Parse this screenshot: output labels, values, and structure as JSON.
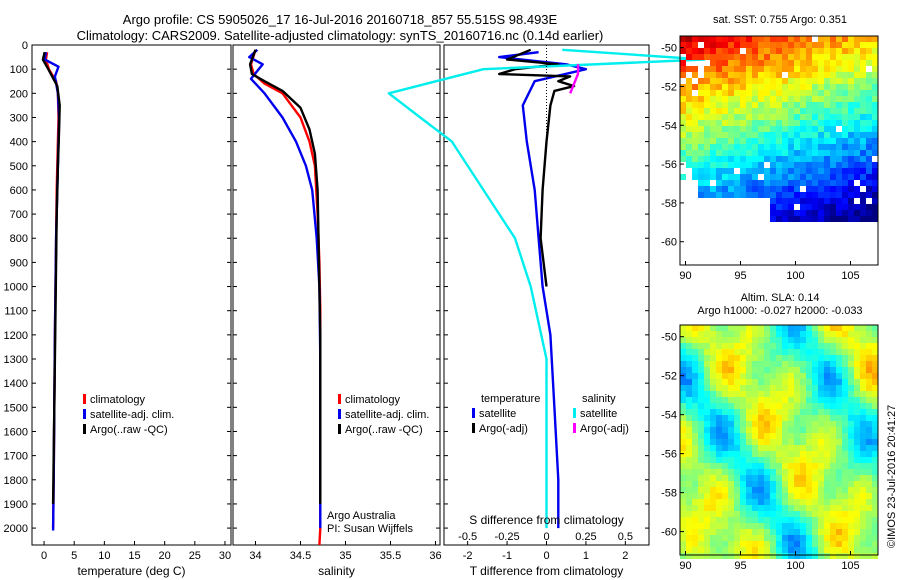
{
  "header": {
    "line1": "Argo profile: CS 5905026_17 16-Jul-2016 20160718_857 55.515S 98.493E",
    "line2": "Climatology: CARS2009. Satellite-adjusted climatology: synTS_20160716.nc (0.14d earlier)"
  },
  "colors": {
    "climatology": "#ff0000",
    "satellite": "#0000ee",
    "argo": "#000000",
    "satellite_salinity": "#00eeee",
    "argo_salinity": "#ff00ff"
  },
  "chart_data": [
    {
      "id": "temperature",
      "type": "line",
      "xlabel": "temperature (deg C)",
      "ylabel": "",
      "xlim": [
        -2,
        31
      ],
      "ylim": [
        2070,
        0
      ],
      "x_ticks": [
        0,
        5,
        10,
        15,
        20,
        25,
        30
      ],
      "y_ticks": [
        0,
        100,
        200,
        300,
        400,
        500,
        600,
        700,
        800,
        900,
        1000,
        1100,
        1200,
        1300,
        1400,
        1500,
        1600,
        1700,
        1800,
        1900,
        2000
      ],
      "legend": [
        "climatology",
        "satellite-adj. clim.",
        "Argo(..raw -QC)"
      ],
      "series": [
        {
          "name": "climatology",
          "color": "#ff0000",
          "points": [
            [
              0.5,
              30
            ],
            [
              0.3,
              60
            ],
            [
              0.8,
              100
            ],
            [
              2.0,
              150
            ],
            [
              2.3,
              200
            ],
            [
              2.4,
              300
            ],
            [
              2.3,
              400
            ],
            [
              2.1,
              600
            ],
            [
              2.0,
              800
            ],
            [
              1.9,
              1000
            ],
            [
              1.8,
              1200
            ],
            [
              1.7,
              1500
            ],
            [
              1.6,
              1800
            ],
            [
              1.5,
              2000
            ]
          ]
        },
        {
          "name": "satellite-adj. clim.",
          "color": "#0000ee",
          "points": [
            [
              0.3,
              30
            ],
            [
              0.1,
              60
            ],
            [
              2.4,
              90
            ],
            [
              1.8,
              130
            ],
            [
              2.3,
              200
            ],
            [
              2.5,
              300
            ],
            [
              2.4,
              400
            ],
            [
              2.2,
              600
            ],
            [
              2.0,
              800
            ],
            [
              1.9,
              1000
            ],
            [
              1.8,
              1200
            ],
            [
              1.7,
              1500
            ],
            [
              1.6,
              1800
            ],
            [
              1.5,
              2010
            ]
          ]
        },
        {
          "name": "Argo(..raw -QC)",
          "color": "#000000",
          "points": [
            [
              0.1,
              30
            ],
            [
              -0.2,
              60
            ],
            [
              0.7,
              100
            ],
            [
              2.2,
              170
            ],
            [
              2.6,
              250
            ],
            [
              2.5,
              350
            ],
            [
              2.3,
              500
            ],
            [
              2.1,
              700
            ],
            [
              2.0,
              900
            ],
            [
              1.9,
              1100
            ],
            [
              1.8,
              1300
            ],
            [
              1.7,
              1500
            ],
            [
              1.6,
              1700
            ],
            [
              1.5,
              1900
            ]
          ]
        }
      ]
    },
    {
      "id": "salinity",
      "type": "line",
      "xlabel": "salinity",
      "ylabel": "",
      "xlim": [
        33.75,
        36.05
      ],
      "ylim": [
        2070,
        0
      ],
      "x_ticks": [
        34,
        34.5,
        35,
        35.5,
        36
      ],
      "legend": [
        "climatology",
        "satellite-adj. clim.",
        "Argo(..raw -QC)"
      ],
      "annotation": [
        "Argo Australia",
        "PI: Susan Wijffels"
      ],
      "series": [
        {
          "name": "climatology",
          "color": "#ff0000",
          "points": [
            [
              34.0,
              20
            ],
            [
              33.95,
              80
            ],
            [
              33.98,
              120
            ],
            [
              34.1,
              160
            ],
            [
              34.3,
              200
            ],
            [
              34.5,
              300
            ],
            [
              34.6,
              400
            ],
            [
              34.66,
              500
            ],
            [
              34.69,
              700
            ],
            [
              34.71,
              900
            ],
            [
              34.72,
              1100
            ],
            [
              34.72,
              1400
            ],
            [
              34.72,
              1700
            ],
            [
              34.72,
              2000
            ],
            [
              34.71,
              2070
            ]
          ]
        },
        {
          "name": "satellite-adj. clim.",
          "color": "#0000ee",
          "points": [
            [
              34.02,
              20
            ],
            [
              33.93,
              50
            ],
            [
              34.08,
              80
            ],
            [
              33.95,
              140
            ],
            [
              34.1,
              200
            ],
            [
              34.3,
              300
            ],
            [
              34.45,
              400
            ],
            [
              34.56,
              500
            ],
            [
              34.63,
              600
            ],
            [
              34.68,
              800
            ],
            [
              34.71,
              1000
            ],
            [
              34.72,
              1300
            ],
            [
              34.72,
              1600
            ],
            [
              34.72,
              2000
            ]
          ]
        },
        {
          "name": "Argo(..raw -QC)",
          "color": "#000000",
          "points": [
            [
              34.0,
              20
            ],
            [
              33.94,
              80
            ],
            [
              33.96,
              120
            ],
            [
              34.1,
              150
            ],
            [
              34.3,
              190
            ],
            [
              34.5,
              260
            ],
            [
              34.6,
              350
            ],
            [
              34.66,
              450
            ],
            [
              34.69,
              600
            ],
            [
              34.7,
              800
            ],
            [
              34.71,
              1000
            ],
            [
              34.72,
              1200
            ],
            [
              34.72,
              1500
            ],
            [
              34.72,
              1800
            ],
            [
              34.72,
              1900
            ]
          ]
        }
      ]
    },
    {
      "id": "difference",
      "type": "line",
      "xlabel": "T difference from climatology",
      "x2label": "S difference from climatology",
      "xlim": [
        -2.6,
        2.6
      ],
      "ylim": [
        2070,
        0
      ],
      "x_ticks": [
        -2,
        -1,
        0,
        1,
        2
      ],
      "x2_ticks": [
        -0.5,
        -0.25,
        0,
        0.25,
        0.5
      ],
      "legend_temperature_title": "temperature",
      "legend_salinity_title": "salinity",
      "legend": [
        "satellite",
        "Argo(-adj)",
        "satellite",
        "Argo(-adj)"
      ],
      "series": [
        {
          "name": "satellite",
          "quantity": "temperature",
          "color": "#0000ee",
          "points": [
            [
              -0.2,
              30
            ],
            [
              -1.2,
              50
            ],
            [
              0.5,
              80
            ],
            [
              1.0,
              100
            ],
            [
              -0.3,
              150
            ],
            [
              -0.6,
              250
            ],
            [
              -0.5,
              400
            ],
            [
              -0.3,
              600
            ],
            [
              -0.2,
              800
            ],
            [
              -0.1,
              1000
            ],
            [
              0.1,
              1200
            ],
            [
              0.2,
              1500
            ],
            [
              0.3,
              1800
            ],
            [
              0.3,
              2000
            ]
          ]
        },
        {
          "name": "Argo(-adj)",
          "quantity": "temperature",
          "color": "#000000",
          "points": [
            [
              -0.4,
              20
            ],
            [
              -1.0,
              60
            ],
            [
              0.3,
              80
            ],
            [
              -0.8,
              100
            ],
            [
              -1.2,
              120
            ],
            [
              0.6,
              130
            ],
            [
              0.3,
              150
            ],
            [
              0.7,
              170
            ],
            [
              0.2,
              190
            ],
            [
              0.1,
              250
            ],
            [
              0.0,
              400
            ],
            [
              -0.1,
              600
            ],
            [
              -0.15,
              800
            ],
            [
              0.0,
              1000
            ]
          ]
        },
        {
          "name": "satellite",
          "quantity": "salinity",
          "color": "#00eeee",
          "points": [
            [
              0.1,
              20
            ],
            [
              1.0,
              60
            ],
            [
              -0.4,
              100
            ],
            [
              -1.0,
              200
            ],
            [
              -0.8,
              300
            ],
            [
              -0.6,
              400
            ],
            [
              -0.4,
              600
            ],
            [
              -0.2,
              800
            ],
            [
              -0.1,
              1000
            ],
            [
              0.0,
              1300
            ],
            [
              0.0,
              1800
            ],
            [
              0.0,
              2000
            ]
          ]
        },
        {
          "name": "Argo(-adj)",
          "quantity": "salinity",
          "color": "#ff00ff",
          "points": [
            [
              0.2,
              80
            ],
            [
              0.2,
              120
            ],
            [
              0.15,
              200
            ]
          ]
        }
      ]
    },
    {
      "id": "sst-map",
      "type": "heatmap",
      "title": "sat. SST: 0.755 Argo: 0.351",
      "xlim": [
        89.5,
        107.5
      ],
      "ylim": [
        -61.2,
        -49.4
      ],
      "x_ticks": [
        90,
        95,
        100,
        105
      ],
      "y_ticks": [
        -50,
        -52,
        -54,
        -56,
        -58,
        -60
      ],
      "marker": {
        "lon": 98.493,
        "lat": -55.515
      }
    },
    {
      "id": "sla-map",
      "type": "heatmap",
      "title_line1": "Altim. SLA: 0.14",
      "title_line2": "Argo h1000: -0.027 h2000: -0.033",
      "xlim": [
        89.5,
        107.5
      ],
      "ylim": [
        -61.2,
        -49.4
      ],
      "x_ticks": [
        90,
        95,
        100,
        105
      ],
      "y_ticks": [
        -50,
        -52,
        -54,
        -56,
        -58,
        -60
      ],
      "marker": {
        "lon": 98.493,
        "lat": -55.515
      }
    }
  ],
  "footer": {
    "credit": "©IMOS 23-Jul-2016 20:41:27"
  }
}
